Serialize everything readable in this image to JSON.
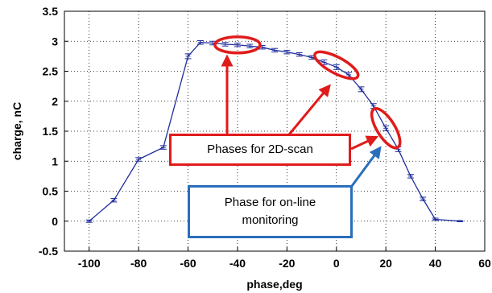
{
  "chart_data": {
    "type": "line",
    "xlabel": "phase,deg",
    "ylabel": "charge, nC",
    "xlim": [
      -110,
      60
    ],
    "ylim": [
      -0.5,
      3.5
    ],
    "x_ticks": [
      -100,
      -80,
      -60,
      -40,
      -20,
      0,
      20,
      40,
      60
    ],
    "y_ticks": [
      -0.5,
      0,
      0.5,
      1,
      1.5,
      2,
      2.5,
      3,
      3.5
    ],
    "grid": "dotted",
    "line_color": "#1f2d9c",
    "series": [
      {
        "x": [
          -100,
          -90,
          -80,
          -70,
          -60,
          -55,
          -50,
          -45,
          -40,
          -35,
          -30,
          -25,
          -20,
          -15,
          -10,
          -5,
          0,
          5,
          10,
          15,
          20,
          25,
          30,
          35,
          40,
          50
        ],
        "y": [
          0.0,
          0.35,
          1.03,
          1.23,
          2.75,
          2.98,
          2.97,
          2.95,
          2.94,
          2.92,
          2.9,
          2.85,
          2.82,
          2.78,
          2.73,
          2.65,
          2.57,
          2.44,
          2.2,
          1.92,
          1.55,
          1.2,
          0.75,
          0.37,
          0.03,
          0.0
        ],
        "err": [
          0.02,
          0.03,
          0.03,
          0.03,
          0.04,
          0.03,
          0.03,
          0.03,
          0.03,
          0.03,
          0.03,
          0.03,
          0.03,
          0.03,
          0.03,
          0.04,
          0.04,
          0.04,
          0.04,
          0.04,
          0.04,
          0.04,
          0.03,
          0.03,
          0.02,
          0.01
        ]
      }
    ],
    "highlight_ellipses": [
      {
        "x": -40,
        "y": 2.94,
        "color": "#e01b1b"
      },
      {
        "x": 0,
        "y": 2.6,
        "color": "#e01b1b"
      },
      {
        "x": 20,
        "y": 1.55,
        "color": "#e01b1b"
      }
    ],
    "annotations": [
      {
        "text": "Phases for 2D-scan",
        "color": "#e01b1b"
      },
      {
        "text": "Phase for on-line monitoring",
        "color": "#2a6ebb"
      }
    ]
  },
  "callouts": {
    "scan_label": "Phases for 2D-scan",
    "monitor_label_line1": "Phase for on-line",
    "monitor_label_line2": "monitoring"
  }
}
